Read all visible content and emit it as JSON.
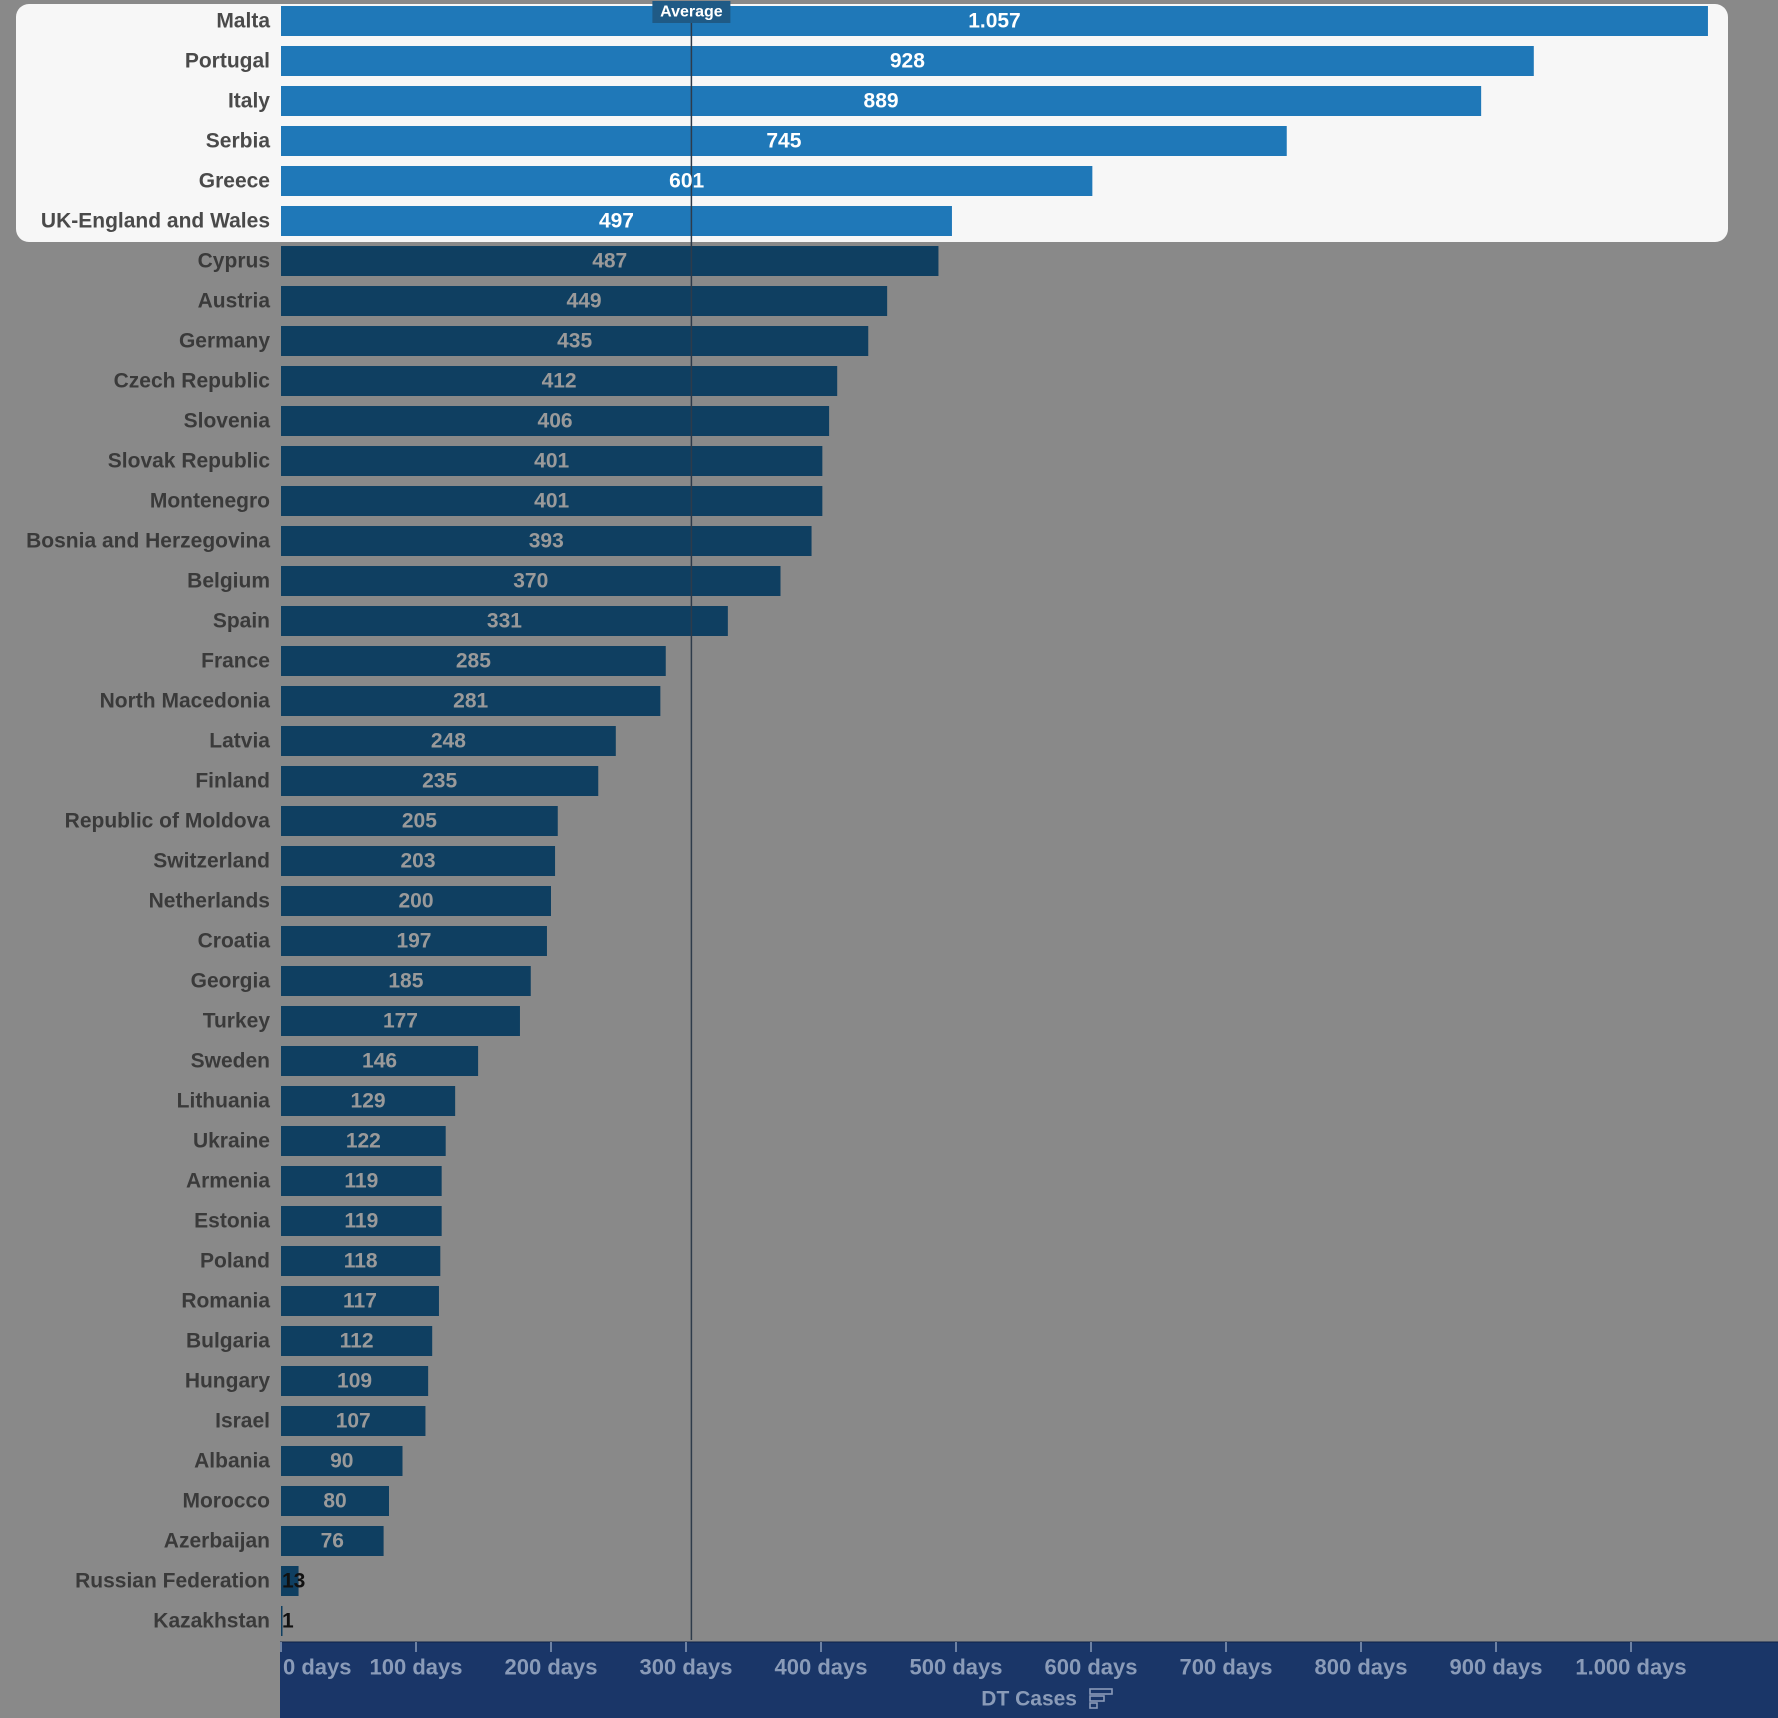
{
  "chart_data": {
    "type": "bar",
    "orientation": "horizontal",
    "categories": [
      "Malta",
      "Portugal",
      "Italy",
      "Serbia",
      "Greece",
      "UK-England and Wales",
      "Cyprus",
      "Austria",
      "Germany",
      "Czech Republic",
      "Slovenia",
      "Slovak Republic",
      "Montenegro",
      "Bosnia and Herzegovina",
      "Belgium",
      "Spain",
      "France",
      "North Macedonia",
      "Latvia",
      "Finland",
      "Republic of Moldova",
      "Switzerland",
      "Netherlands",
      "Croatia",
      "Georgia",
      "Turkey",
      "Sweden",
      "Lithuania",
      "Ukraine",
      "Armenia",
      "Estonia",
      "Poland",
      "Romania",
      "Bulgaria",
      "Hungary",
      "Israel",
      "Albania",
      "Morocco",
      "Azerbaijan",
      "Russian Federation",
      "Kazakhstan"
    ],
    "values": [
      1057,
      928,
      889,
      745,
      601,
      497,
      487,
      449,
      435,
      412,
      406,
      401,
      401,
      393,
      370,
      331,
      285,
      281,
      248,
      235,
      205,
      203,
      200,
      197,
      185,
      177,
      146,
      129,
      122,
      119,
      119,
      118,
      117,
      112,
      109,
      107,
      90,
      80,
      76,
      13,
      1
    ],
    "value_labels": [
      "1.057",
      "928",
      "889",
      "745",
      "601",
      "497",
      "487",
      "449",
      "435",
      "412",
      "406",
      "401",
      "401",
      "393",
      "370",
      "331",
      "285",
      "281",
      "248",
      "235",
      "205",
      "203",
      "200",
      "197",
      "185",
      "177",
      "146",
      "129",
      "122",
      "119",
      "119",
      "118",
      "117",
      "112",
      "109",
      "107",
      "90",
      "80",
      "76",
      "13",
      "1"
    ],
    "highlighted_count": 6,
    "xlabel": "DT Cases",
    "xlim": [
      0,
      1100
    ],
    "tick_values": [
      0,
      100,
      200,
      300,
      400,
      500,
      600,
      700,
      800,
      900,
      1000
    ],
    "tick_labels": [
      "0 days",
      "100 days",
      "200 days",
      "300 days",
      "400 days",
      "500 days",
      "600 days",
      "700 days",
      "800 days",
      "900 days",
      "1.000 days"
    ],
    "reference_line": {
      "label": "Average",
      "value": 304
    },
    "grid": false,
    "colors": {
      "highlight_bar": "#1f78b8",
      "bar": "#0f3f61",
      "highlight_panel": "#f7f7f7",
      "background": "#898989",
      "axis_band": "#1a3668"
    }
  },
  "icons": {
    "sort": "sort-icon"
  }
}
